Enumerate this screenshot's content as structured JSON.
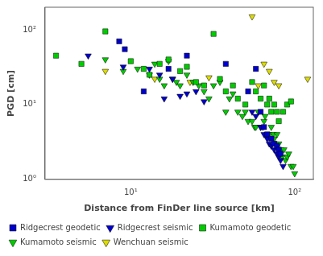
{
  "chart_data": {
    "type": "scatter",
    "xlabel": "Distance from FinDer line source [km]",
    "ylabel": "PGD [cm]",
    "log": true,
    "xlim": [
      3,
      130
    ],
    "ylim": [
      1,
      200
    ],
    "xticks": [
      {
        "value": 10,
        "label": "10¹"
      },
      {
        "value": 100,
        "label": "10²"
      }
    ],
    "yticks": [
      {
        "value": 1,
        "label": "10⁰"
      },
      {
        "value": 10,
        "label": "10¹"
      },
      {
        "value": 100,
        "label": "10²"
      }
    ],
    "grid": false,
    "legend": "lower left",
    "series": [
      {
        "name": "Ridgecrest geodetic",
        "color": "#0000cc",
        "marker": "square",
        "x": [
          8.5,
          9.2,
          12,
          17,
          22,
          38,
          52,
          58,
          62,
          65,
          68,
          72,
          75,
          78,
          80,
          82
        ],
        "values": [
          70,
          55,
          15,
          30,
          45,
          35,
          15,
          30,
          8,
          5,
          4,
          3.5,
          3,
          2.8,
          2.5,
          2.2
        ]
      },
      {
        "name": "Ridgecrest seismic",
        "color": "#0000cc",
        "marker": "triangle_down",
        "x": [
          5.5,
          9,
          13,
          15,
          16,
          18,
          20,
          22,
          25,
          28,
          55,
          58,
          62,
          65,
          68,
          70,
          72,
          75,
          78,
          80,
          82,
          85
        ],
        "values": [
          45,
          32,
          30,
          25,
          12,
          22,
          13,
          14,
          15,
          11,
          8,
          7,
          5,
          4,
          3.5,
          3,
          2.8,
          2.5,
          2.2,
          2,
          1.8,
          1.5
        ]
      },
      {
        "name": "Kumamoto geodetic",
        "color": "#00cc00",
        "marker": "square",
        "x": [
          3.5,
          5,
          7,
          10,
          12,
          13,
          15,
          17,
          20,
          22,
          25,
          28,
          32,
          35,
          38,
          42,
          45,
          50,
          55,
          58,
          62,
          65,
          68,
          70,
          72,
          75,
          78,
          80,
          85,
          90,
          95
        ],
        "values": [
          45,
          35,
          95,
          38,
          30,
          25,
          35,
          40,
          28,
          32,
          20,
          18,
          88,
          22,
          15,
          18,
          12,
          10,
          20,
          15,
          12,
          18,
          10,
          12,
          8,
          10,
          8,
          6,
          8,
          10,
          11
        ]
      },
      {
        "name": "Kumamoto seismic",
        "color": "#00cc00",
        "marker": "triangle_down",
        "x": [
          7,
          9,
          11,
          13,
          14,
          15,
          16,
          17,
          18,
          19,
          20,
          22,
          24,
          26,
          28,
          30,
          32,
          35,
          38,
          40,
          42,
          45,
          48,
          50,
          52,
          55,
          57,
          58,
          60,
          62,
          64,
          65,
          66,
          68,
          70,
          72,
          74,
          75,
          76,
          78,
          80,
          82,
          84,
          86,
          88,
          90,
          92,
          95,
          98,
          100
        ],
        "values": [
          40,
          28,
          30,
          25,
          35,
          22,
          18,
          38,
          22,
          20,
          18,
          25,
          20,
          18,
          15,
          12,
          18,
          20,
          8,
          12,
          14,
          8,
          7,
          8,
          6,
          6,
          5,
          5,
          8,
          5,
          5,
          6,
          7,
          4,
          4,
          5,
          4,
          3.5,
          3,
          4,
          3,
          2.5,
          2,
          2.5,
          1.8,
          2,
          2.2,
          1.5,
          1.5,
          1.2
        ]
      },
      {
        "name": "Wenchuan seismic",
        "color": "#dddd00",
        "marker": "triangle_down",
        "x": [
          7,
          14,
          23,
          30,
          55,
          65,
          70,
          75,
          80,
          60,
          120
        ],
        "values": [
          28,
          22,
          20,
          23,
          150,
          35,
          28,
          20,
          18,
          18,
          22
        ]
      }
    ]
  }
}
